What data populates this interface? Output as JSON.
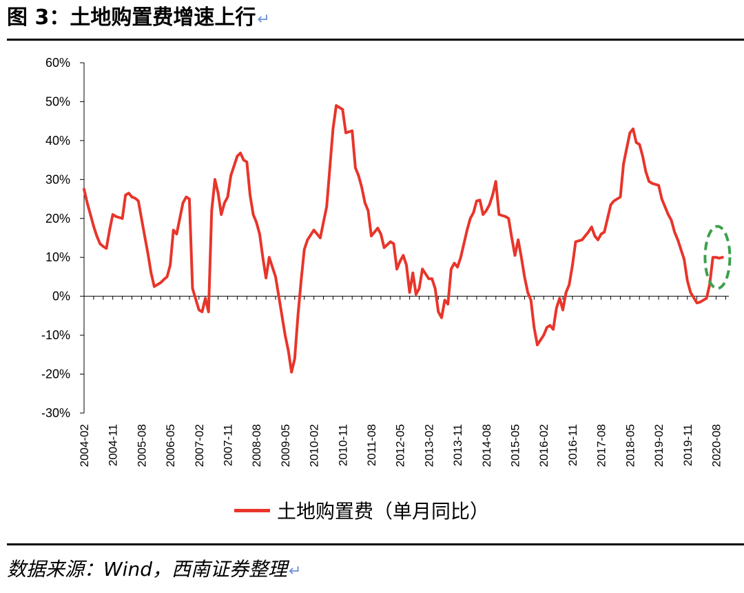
{
  "header": {
    "title": "图 3：土地购置费增速上行",
    "return_mark": "↵"
  },
  "footer": {
    "source": "数据来源：Wind，西南证券整理",
    "return_mark": "↵"
  },
  "colors": {
    "series": "#e8352b",
    "highlight": "#3aa14a",
    "axis": "#000000"
  },
  "chart_data": {
    "type": "line",
    "title": "",
    "xlabel": "",
    "ylabel": "",
    "ylim": [
      -0.3,
      0.6
    ],
    "y_ticks": [
      "60%",
      "50%",
      "40%",
      "30%",
      "20%",
      "10%",
      "0%",
      "-10%",
      "-20%",
      "-30%"
    ],
    "x_tick_labels": [
      "2004-02",
      "2004-11",
      "2005-08",
      "2006-05",
      "2007-02",
      "2007-11",
      "2008-08",
      "2009-05",
      "2010-02",
      "2010-11",
      "2011-08",
      "2012-05",
      "2013-02",
      "2013-11",
      "2014-08",
      "2015-05",
      "2016-02",
      "2016-11",
      "2017-08",
      "2018-05",
      "2019-02",
      "2019-11",
      "2020-08"
    ],
    "legend": {
      "position": "bottom",
      "entries": [
        "土地购置费（单月同比）"
      ]
    },
    "highlight": {
      "type": "dashed-ellipse",
      "around": "2020-06 to 2020-10"
    },
    "series": [
      {
        "name": "土地购置费（单月同比）",
        "points": [
          [
            "2004-02",
            0.275
          ],
          [
            "2004-03",
            0.24
          ],
          [
            "2004-04",
            0.21
          ],
          [
            "2004-05",
            0.18
          ],
          [
            "2004-06",
            0.155
          ],
          [
            "2004-07",
            0.135
          ],
          [
            "2004-08",
            0.128
          ],
          [
            "2004-09",
            0.123
          ],
          [
            "2004-10",
            0.17
          ],
          [
            "2004-11",
            0.21
          ],
          [
            "2004-12",
            0.205
          ],
          [
            "2005-02",
            0.2
          ],
          [
            "2005-03",
            0.26
          ],
          [
            "2005-04",
            0.265
          ],
          [
            "2005-05",
            0.255
          ],
          [
            "2005-06",
            0.252
          ],
          [
            "2005-07",
            0.245
          ],
          [
            "2005-08",
            0.2
          ],
          [
            "2005-09",
            0.155
          ],
          [
            "2005-10",
            0.11
          ],
          [
            "2005-11",
            0.06
          ],
          [
            "2005-12",
            0.025
          ],
          [
            "2006-02",
            0.035
          ],
          [
            "2006-03",
            0.043
          ],
          [
            "2006-04",
            0.05
          ],
          [
            "2006-05",
            0.08
          ],
          [
            "2006-06",
            0.17
          ],
          [
            "2006-07",
            0.16
          ],
          [
            "2006-08",
            0.2
          ],
          [
            "2006-09",
            0.24
          ],
          [
            "2006-10",
            0.255
          ],
          [
            "2006-11",
            0.25
          ],
          [
            "2006-12",
            0.02
          ],
          [
            "2007-02",
            -0.035
          ],
          [
            "2007-03",
            -0.04
          ],
          [
            "2007-04",
            -0.005
          ],
          [
            "2007-05",
            -0.04
          ],
          [
            "2007-06",
            0.22
          ],
          [
            "2007-07",
            0.3
          ],
          [
            "2007-08",
            0.265
          ],
          [
            "2007-09",
            0.21
          ],
          [
            "2007-10",
            0.24
          ],
          [
            "2007-11",
            0.255
          ],
          [
            "2007-12",
            0.31
          ],
          [
            "2008-02",
            0.36
          ],
          [
            "2008-03",
            0.368
          ],
          [
            "2008-04",
            0.35
          ],
          [
            "2008-05",
            0.345
          ],
          [
            "2008-06",
            0.26
          ],
          [
            "2008-07",
            0.21
          ],
          [
            "2008-08",
            0.19
          ],
          [
            "2008-09",
            0.16
          ],
          [
            "2008-10",
            0.1
          ],
          [
            "2008-11",
            0.047
          ],
          [
            "2008-12",
            0.1
          ],
          [
            "2009-02",
            0.05
          ],
          [
            "2009-03",
            0.0
          ],
          [
            "2009-04",
            -0.05
          ],
          [
            "2009-05",
            -0.1
          ],
          [
            "2009-06",
            -0.14
          ],
          [
            "2009-07",
            -0.195
          ],
          [
            "2009-08",
            -0.16
          ],
          [
            "2009-09",
            -0.05
          ],
          [
            "2009-10",
            0.04
          ],
          [
            "2009-11",
            0.12
          ],
          [
            "2009-12",
            0.145
          ],
          [
            "2010-02",
            0.17
          ],
          [
            "2010-03",
            0.16
          ],
          [
            "2010-04",
            0.15
          ],
          [
            "2010-05",
            0.19
          ],
          [
            "2010-06",
            0.23
          ],
          [
            "2010-07",
            0.33
          ],
          [
            "2010-08",
            0.43
          ],
          [
            "2010-09",
            0.49
          ],
          [
            "2010-10",
            0.485
          ],
          [
            "2010-11",
            0.48
          ],
          [
            "2010-12",
            0.42
          ],
          [
            "2011-02",
            0.425
          ],
          [
            "2011-03",
            0.33
          ],
          [
            "2011-04",
            0.31
          ],
          [
            "2011-05",
            0.28
          ],
          [
            "2011-06",
            0.24
          ],
          [
            "2011-07",
            0.22
          ],
          [
            "2011-08",
            0.155
          ],
          [
            "2011-09",
            0.165
          ],
          [
            "2011-10",
            0.175
          ],
          [
            "2011-11",
            0.16
          ],
          [
            "2011-12",
            0.125
          ],
          [
            "2012-02",
            0.14
          ],
          [
            "2012-03",
            0.135
          ],
          [
            "2012-04",
            0.07
          ],
          [
            "2012-05",
            0.09
          ],
          [
            "2012-06",
            0.105
          ],
          [
            "2012-07",
            0.08
          ],
          [
            "2012-08",
            0.01
          ],
          [
            "2012-09",
            0.06
          ],
          [
            "2012-10",
            0.005
          ],
          [
            "2012-11",
            0.02
          ],
          [
            "2012-12",
            0.07
          ],
          [
            "2013-02",
            0.045
          ],
          [
            "2013-03",
            0.045
          ],
          [
            "2013-04",
            0.02
          ],
          [
            "2013-05",
            -0.04
          ],
          [
            "2013-06",
            -0.055
          ],
          [
            "2013-07",
            -0.01
          ],
          [
            "2013-08",
            -0.02
          ],
          [
            "2013-09",
            0.07
          ],
          [
            "2013-10",
            0.085
          ],
          [
            "2013-11",
            0.075
          ],
          [
            "2013-12",
            0.1
          ],
          [
            "2014-02",
            0.17
          ],
          [
            "2014-03",
            0.2
          ],
          [
            "2014-04",
            0.215
          ],
          [
            "2014-05",
            0.245
          ],
          [
            "2014-06",
            0.247
          ],
          [
            "2014-07",
            0.21
          ],
          [
            "2014-08",
            0.22
          ],
          [
            "2014-09",
            0.235
          ],
          [
            "2014-10",
            0.26
          ],
          [
            "2014-11",
            0.295
          ],
          [
            "2014-12",
            0.21
          ],
          [
            "2015-02",
            0.205
          ],
          [
            "2015-03",
            0.2
          ],
          [
            "2015-04",
            0.15
          ],
          [
            "2015-05",
            0.105
          ],
          [
            "2015-06",
            0.145
          ],
          [
            "2015-07",
            0.1
          ],
          [
            "2015-08",
            0.05
          ],
          [
            "2015-09",
            0.01
          ],
          [
            "2015-10",
            -0.01
          ],
          [
            "2015-11",
            -0.08
          ],
          [
            "2015-12",
            -0.125
          ],
          [
            "2016-02",
            -0.1
          ],
          [
            "2016-03",
            -0.08
          ],
          [
            "2016-04",
            -0.075
          ],
          [
            "2016-05",
            -0.085
          ],
          [
            "2016-06",
            -0.03
          ],
          [
            "2016-07",
            -0.005
          ],
          [
            "2016-08",
            -0.035
          ],
          [
            "2016-09",
            0.01
          ],
          [
            "2016-10",
            0.03
          ],
          [
            "2016-11",
            0.08
          ],
          [
            "2016-12",
            0.14
          ],
          [
            "2017-02",
            0.145
          ],
          [
            "2017-03",
            0.155
          ],
          [
            "2017-04",
            0.165
          ],
          [
            "2017-05",
            0.178
          ],
          [
            "2017-06",
            0.155
          ],
          [
            "2017-07",
            0.145
          ],
          [
            "2017-08",
            0.16
          ],
          [
            "2017-09",
            0.165
          ],
          [
            "2017-10",
            0.2
          ],
          [
            "2017-11",
            0.235
          ],
          [
            "2017-12",
            0.245
          ],
          [
            "2018-02",
            0.255
          ],
          [
            "2018-03",
            0.34
          ],
          [
            "2018-04",
            0.38
          ],
          [
            "2018-05",
            0.42
          ],
          [
            "2018-06",
            0.43
          ],
          [
            "2018-07",
            0.395
          ],
          [
            "2018-08",
            0.39
          ],
          [
            "2018-09",
            0.36
          ],
          [
            "2018-10",
            0.32
          ],
          [
            "2018-11",
            0.295
          ],
          [
            "2018-12",
            0.29
          ],
          [
            "2019-02",
            0.285
          ],
          [
            "2019-03",
            0.25
          ],
          [
            "2019-04",
            0.23
          ],
          [
            "2019-05",
            0.21
          ],
          [
            "2019-06",
            0.195
          ],
          [
            "2019-07",
            0.165
          ],
          [
            "2019-08",
            0.145
          ],
          [
            "2019-09",
            0.12
          ],
          [
            "2019-10",
            0.095
          ],
          [
            "2019-11",
            0.04
          ],
          [
            "2019-12",
            0.01
          ],
          [
            "2020-02",
            -0.017
          ],
          [
            "2020-03",
            -0.015
          ],
          [
            "2020-04",
            -0.01
          ],
          [
            "2020-05",
            -0.005
          ],
          [
            "2020-06",
            0.03
          ],
          [
            "2020-07",
            0.1
          ],
          [
            "2020-08",
            0.1
          ],
          [
            "2020-09",
            0.098
          ],
          [
            "2020-10",
            0.1
          ]
        ]
      }
    ]
  }
}
